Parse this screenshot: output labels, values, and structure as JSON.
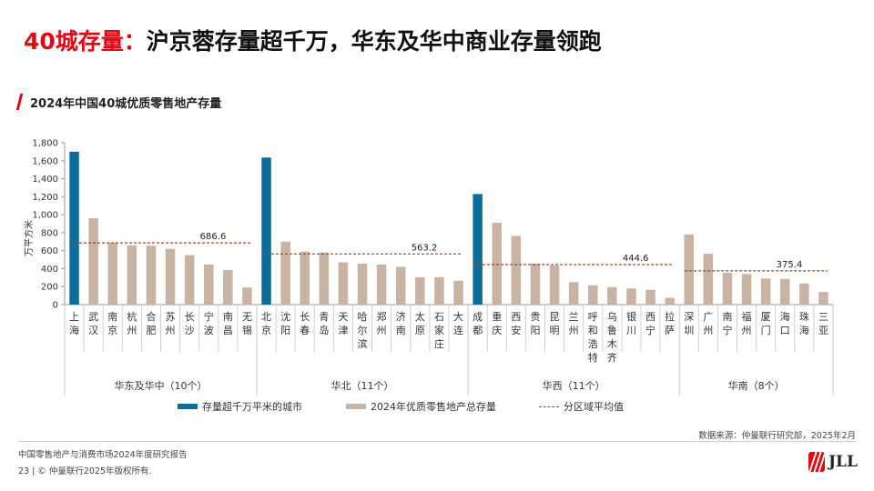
{
  "header": {
    "title_red": "40城存量：",
    "title_rest": "沪京蓉存量超千万，华东及华中商业存量领跑",
    "subtitle": "2024年中国40城优质零售地产存量"
  },
  "chart_data": {
    "type": "bar",
    "ylabel": "万平方米",
    "ylim": [
      0,
      1800
    ],
    "yticks": [
      "0",
      "200",
      "400",
      "600",
      "800",
      "1,000",
      "1,200",
      "1,400",
      "1,600",
      "1,800"
    ],
    "colors": {
      "highlight": "#0b6e99",
      "normal": "#c9b3a2",
      "avg_line": "#a0442a"
    },
    "groups": [
      {
        "label": "华东及华中（10个）",
        "average": 686.6,
        "average_label": "686.6",
        "cities": [
          {
            "name": "上海",
            "value": 1700,
            "highlight": true
          },
          {
            "name": "武汉",
            "value": 960,
            "highlight": false
          },
          {
            "name": "南京",
            "value": 690,
            "highlight": false
          },
          {
            "name": "杭州",
            "value": 660,
            "highlight": false
          },
          {
            "name": "合肥",
            "value": 655,
            "highlight": false
          },
          {
            "name": "苏州",
            "value": 620,
            "highlight": false
          },
          {
            "name": "长沙",
            "value": 550,
            "highlight": false
          },
          {
            "name": "宁波",
            "value": 445,
            "highlight": false
          },
          {
            "name": "南昌",
            "value": 385,
            "highlight": false
          },
          {
            "name": "无锡",
            "value": 190,
            "highlight": false
          }
        ]
      },
      {
        "label": "华北（11个）",
        "average": 563.2,
        "average_label": "563.2",
        "cities": [
          {
            "name": "北京",
            "value": 1635,
            "highlight": true
          },
          {
            "name": "沈阳",
            "value": 700,
            "highlight": false
          },
          {
            "name": "长春",
            "value": 590,
            "highlight": false
          },
          {
            "name": "青岛",
            "value": 580,
            "highlight": false
          },
          {
            "name": "天津",
            "value": 470,
            "highlight": false
          },
          {
            "name": "哈尔滨",
            "value": 455,
            "highlight": false
          },
          {
            "name": "郑州",
            "value": 445,
            "highlight": false
          },
          {
            "name": "济南",
            "value": 420,
            "highlight": false
          },
          {
            "name": "太原",
            "value": 305,
            "highlight": false
          },
          {
            "name": "石家庄",
            "value": 305,
            "highlight": false
          },
          {
            "name": "大连",
            "value": 265,
            "highlight": false
          }
        ]
      },
      {
        "label": "华西（11个）",
        "average": 444.6,
        "average_label": "444.6",
        "cities": [
          {
            "name": "成都",
            "value": 1230,
            "highlight": true
          },
          {
            "name": "重庆",
            "value": 910,
            "highlight": false
          },
          {
            "name": "西安",
            "value": 765,
            "highlight": false
          },
          {
            "name": "贵阳",
            "value": 455,
            "highlight": false
          },
          {
            "name": "昆明",
            "value": 435,
            "highlight": false
          },
          {
            "name": "兰州",
            "value": 250,
            "highlight": false
          },
          {
            "name": "呼和浩特",
            "value": 215,
            "highlight": false
          },
          {
            "name": "乌鲁木齐",
            "value": 195,
            "highlight": false
          },
          {
            "name": "银川",
            "value": 180,
            "highlight": false
          },
          {
            "name": "西宁",
            "value": 165,
            "highlight": false
          },
          {
            "name": "拉萨",
            "value": 75,
            "highlight": false
          }
        ]
      },
      {
        "label": "华南（8个）",
        "average": 375.4,
        "average_label": "375.4",
        "cities": [
          {
            "name": "深圳",
            "value": 780,
            "highlight": false
          },
          {
            "name": "广州",
            "value": 565,
            "highlight": false
          },
          {
            "name": "南宁",
            "value": 355,
            "highlight": false
          },
          {
            "name": "福州",
            "value": 340,
            "highlight": false
          },
          {
            "name": "厦门",
            "value": 290,
            "highlight": false
          },
          {
            "name": "海口",
            "value": 285,
            "highlight": false
          },
          {
            "name": "珠海",
            "value": 235,
            "highlight": false
          },
          {
            "name": "三亚",
            "value": 140,
            "highlight": false
          }
        ]
      }
    ],
    "legend": [
      {
        "label": "存量超千万平米的城市",
        "type": "highlight"
      },
      {
        "label": "2024年优质零售地产总存量",
        "type": "normal"
      },
      {
        "label": "分区域平均值",
        "type": "avg_line"
      }
    ]
  },
  "footer": {
    "source": "数据来源：仲量联行研究部，2025年2月",
    "report": "中国零售地产与消费市场2024年度研究报告",
    "copyright": "23 | © 仲量联行2025年版权所有.",
    "logo": "JLL"
  }
}
